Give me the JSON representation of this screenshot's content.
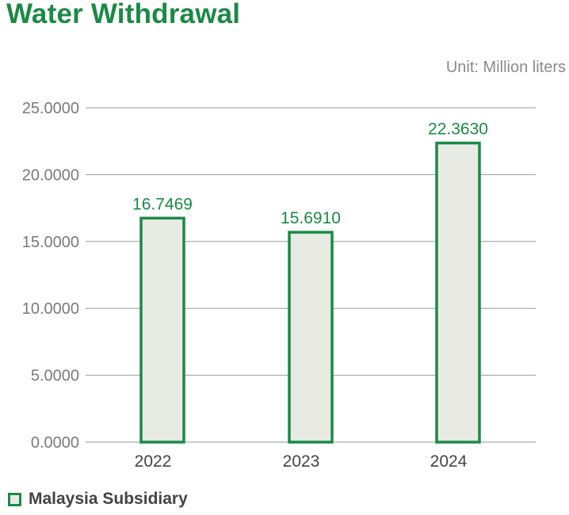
{
  "chart_data": {
    "type": "bar",
    "title": "Water Withdrawal",
    "unit_label": "Unit: Million liters",
    "categories": [
      "2022",
      "2023",
      "2024"
    ],
    "series": [
      {
        "name": "Malaysia Subsidiary",
        "values": [
          16.7469,
          15.691,
          22.363
        ],
        "value_labels": [
          "16.7469",
          "15.6910",
          "22.3630"
        ]
      }
    ],
    "y_ticks": [
      0,
      5,
      10,
      15,
      20,
      25
    ],
    "y_tick_labels": [
      "0.0000",
      "5.0000",
      "10.0000",
      "15.0000",
      "20.0000",
      "25.0000"
    ],
    "ylim": [
      0,
      25
    ],
    "xlabel": "",
    "ylabel": "",
    "grid": true,
    "legend_position": "bottom-left"
  },
  "colors": {
    "accent": "#1a8a44",
    "bar_fill": "#e8ebe4",
    "gridline": "#999999",
    "tick_text": "#7a7a7a"
  }
}
